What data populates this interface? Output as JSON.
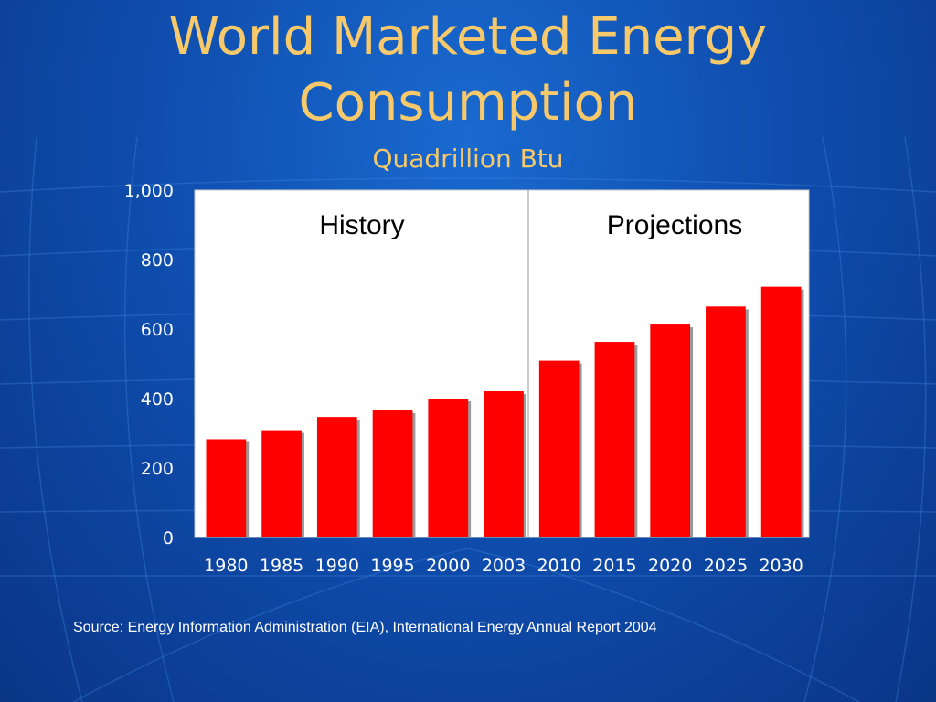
{
  "slide": {
    "title_line1": "World Marketed Energy",
    "title_line2": "Consumption",
    "subtitle": "Quadrillion Btu",
    "source": "Source: Energy Information Administration (EIA), International Energy Annual Report 2004"
  },
  "colors": {
    "title": "#f7c96a",
    "bar": "#ff0000",
    "background": "#0f4fb0",
    "text": "#ffffff"
  },
  "chart_data": {
    "type": "bar",
    "title": "",
    "xlabel": "",
    "ylabel": "",
    "categories": [
      "1980",
      "1985",
      "1990",
      "1995",
      "2000",
      "2003",
      "2010",
      "2015",
      "2020",
      "2025",
      "2030"
    ],
    "values": [
      283,
      309,
      347,
      366,
      400,
      421,
      509,
      563,
      613,
      665,
      722
    ],
    "ylim": [
      0,
      1000
    ],
    "yticks": [
      "0",
      "200",
      "400",
      "600",
      "800",
      "1,000"
    ],
    "ytick_values": [
      0,
      200,
      400,
      600,
      800,
      1000
    ],
    "grid": false,
    "regions": [
      {
        "label": "History",
        "categories": [
          "1980",
          "1985",
          "1990",
          "1995",
          "2000",
          "2003"
        ]
      },
      {
        "label": "Projections",
        "categories": [
          "2010",
          "2015",
          "2020",
          "2025",
          "2030"
        ]
      }
    ]
  }
}
